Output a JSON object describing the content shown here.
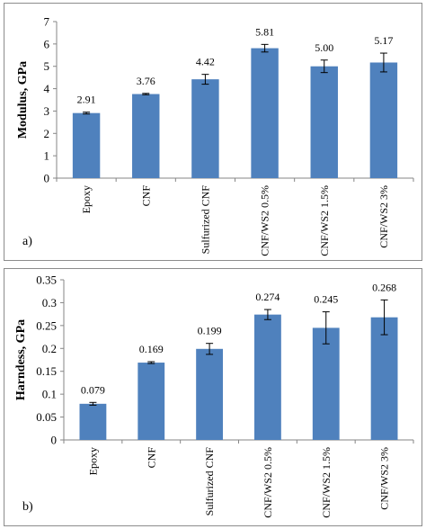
{
  "chart_data": [
    {
      "type": "bar",
      "panel_label": "a)",
      "title": "",
      "xlabel": "",
      "ylabel": "Modulus, GPa",
      "categories": [
        "Epoxy",
        "CNF",
        "Sulfurized CNF",
        "CNF/WS2  0.5%",
        "CNF/WS2  1.5%",
        "CNF/WS2  3%"
      ],
      "values": [
        2.91,
        3.76,
        4.42,
        5.81,
        5.0,
        5.17
      ],
      "data_labels": [
        "2.91",
        "3.76",
        "4.42",
        "5.81",
        "5.00",
        "5.17"
      ],
      "error": [
        0.04,
        0.03,
        0.22,
        0.17,
        0.28,
        0.42
      ],
      "ylim": [
        0,
        7
      ],
      "yticks": [
        0,
        1,
        2,
        3,
        4,
        5,
        6,
        7
      ],
      "ytick_labels": [
        "0",
        "1",
        "2",
        "3",
        "4",
        "5",
        "6",
        "7"
      ],
      "grid": false,
      "color": "#4f81bd"
    },
    {
      "type": "bar",
      "panel_label": "b)",
      "title": "",
      "xlabel": "",
      "ylabel": "Harndess, GPa",
      "categories": [
        "Epoxy",
        "CNF",
        "Sulfurized CNF",
        "CNF/WS2  0.5%",
        "CNF/WS2  1.5%",
        "CNF/WS2  3%"
      ],
      "values": [
        0.079,
        0.169,
        0.199,
        0.274,
        0.245,
        0.268
      ],
      "data_labels": [
        "0.079",
        "0.169",
        "0.199",
        "0.274",
        "0.245",
        "0.268"
      ],
      "error": [
        0.003,
        0.002,
        0.012,
        0.011,
        0.035,
        0.038
      ],
      "ylim": [
        0,
        0.35
      ],
      "yticks": [
        0,
        0.05,
        0.1,
        0.15,
        0.2,
        0.25,
        0.3,
        0.35
      ],
      "ytick_labels": [
        "0",
        "0.05",
        "0.1",
        "0.15",
        "0.2",
        "0.25",
        "0.3",
        "0.35"
      ],
      "grid": false,
      "color": "#4f81bd"
    }
  ]
}
